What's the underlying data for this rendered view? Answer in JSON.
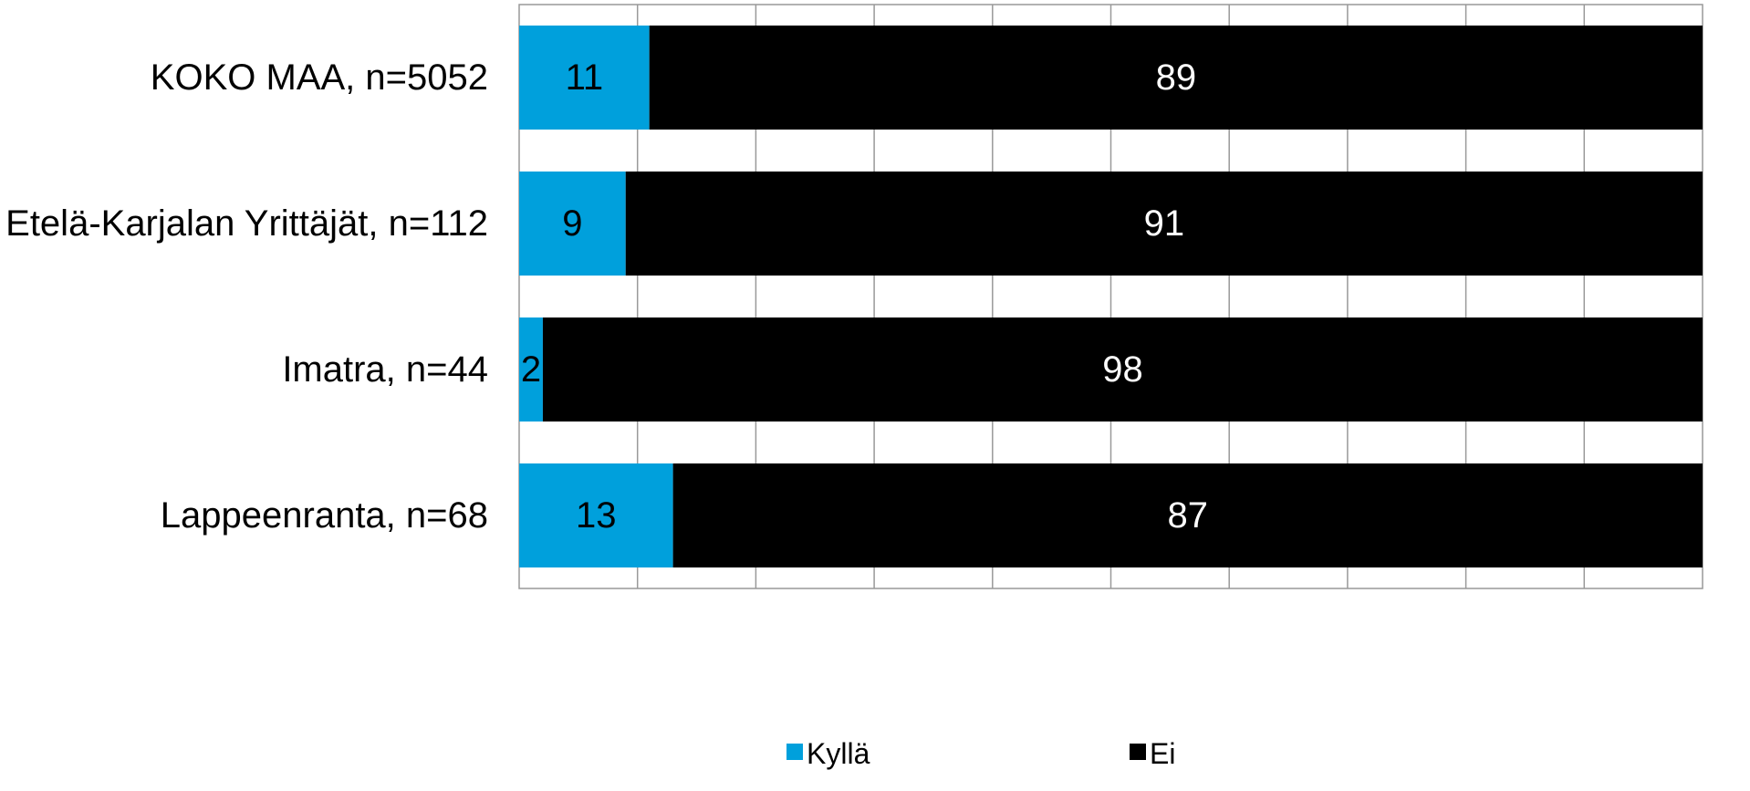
{
  "chart_data": {
    "type": "bar",
    "orientation": "horizontal",
    "stacked": true,
    "categories": [
      "KOKO MAA, n=5052",
      "Etelä-Karjalan Yrittäjät, n=112",
      "Imatra, n=44",
      "Lappeenranta, n=68"
    ],
    "series": [
      {
        "name": "Kyllä",
        "color": "#00A0DC",
        "values": [
          11,
          9,
          2,
          13
        ],
        "label_color": "#000000"
      },
      {
        "name": "Ei",
        "color": "#000000",
        "values": [
          89,
          91,
          98,
          87
        ],
        "label_color": "#ffffff"
      }
    ],
    "xlim": [
      0,
      100
    ],
    "grid": true,
    "gridlines": 10,
    "legend_position": "bottom"
  }
}
